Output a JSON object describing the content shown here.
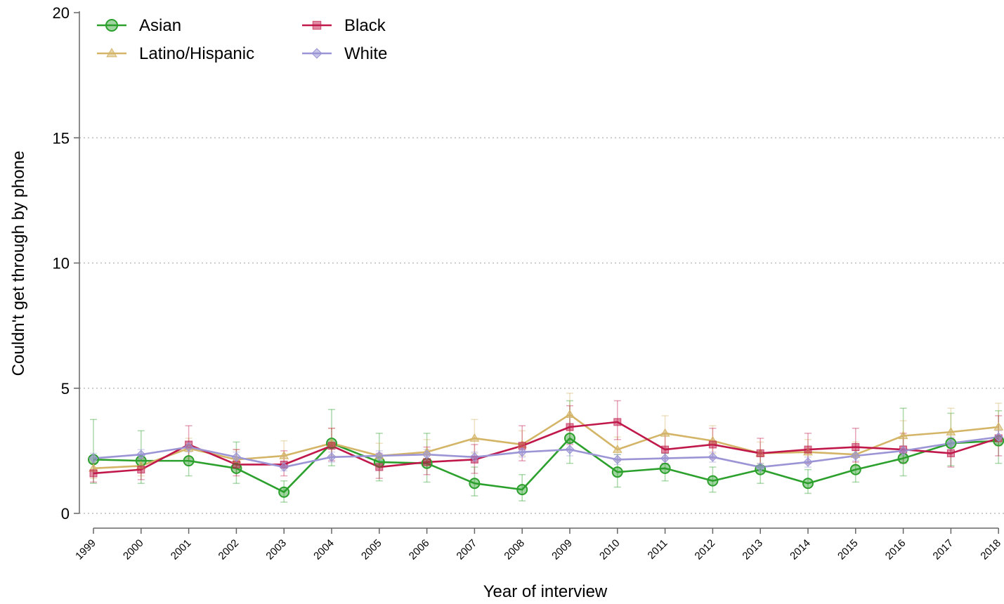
{
  "chart_data": {
    "type": "line",
    "title": "",
    "xlabel": "Year of interview",
    "ylabel": "Couldn't get through by phone",
    "ylim": [
      0,
      20
    ],
    "yticks": [
      0,
      5,
      10,
      15,
      20
    ],
    "grid": true,
    "legend_position": "top-left",
    "x": [
      "1999",
      "2000",
      "2001",
      "2002",
      "2003",
      "2004",
      "2005",
      "2006",
      "2007",
      "2008",
      "2009",
      "2010",
      "2011",
      "2012",
      "2013",
      "2014",
      "2015",
      "2016",
      "2017",
      "2018"
    ],
    "series": [
      {
        "name": "Asian",
        "color": "#2ca02c",
        "marker": "circle",
        "values": [
          2.15,
          2.1,
          2.1,
          1.8,
          0.85,
          2.8,
          2.05,
          2.0,
          1.2,
          0.95,
          3.0,
          1.65,
          1.8,
          1.3,
          1.75,
          1.2,
          1.75,
          2.2,
          2.8,
          2.9
        ],
        "err_low": [
          1.2,
          1.2,
          1.5,
          1.2,
          0.45,
          1.9,
          1.3,
          1.25,
          0.7,
          0.5,
          2.0,
          1.05,
          1.3,
          0.85,
          1.2,
          0.8,
          1.25,
          1.5,
          1.9,
          2.0
        ],
        "err_high": [
          3.75,
          3.3,
          2.75,
          2.85,
          1.3,
          4.15,
          3.2,
          3.2,
          1.85,
          1.55,
          4.5,
          2.35,
          2.4,
          1.85,
          2.45,
          1.75,
          2.4,
          4.2,
          4.0,
          4.1
        ]
      },
      {
        "name": "Latino/Hispanic",
        "color": "#d4b567",
        "marker": "triangle",
        "values": [
          1.8,
          1.9,
          2.6,
          2.15,
          2.3,
          2.8,
          2.3,
          2.45,
          3.0,
          2.75,
          3.95,
          2.55,
          3.2,
          2.9,
          2.4,
          2.45,
          2.35,
          3.1,
          3.25,
          3.45
        ],
        "err_low": [
          1.4,
          1.5,
          2.2,
          1.8,
          1.8,
          2.3,
          1.9,
          2.0,
          2.4,
          2.3,
          3.3,
          2.1,
          2.6,
          2.4,
          2.0,
          2.0,
          1.9,
          2.6,
          2.6,
          2.7
        ],
        "err_high": [
          2.2,
          2.3,
          3.0,
          2.55,
          2.9,
          3.4,
          2.8,
          2.95,
          3.75,
          3.3,
          4.8,
          3.05,
          3.9,
          3.5,
          2.85,
          2.95,
          2.85,
          3.7,
          4.2,
          4.4
        ]
      },
      {
        "name": "Black",
        "color": "#c0184a",
        "marker": "square",
        "values": [
          1.6,
          1.75,
          2.75,
          1.95,
          1.95,
          2.7,
          1.85,
          2.05,
          2.15,
          2.7,
          3.45,
          3.65,
          2.55,
          2.75,
          2.4,
          2.55,
          2.65,
          2.55,
          2.4,
          3.0
        ],
        "err_low": [
          1.25,
          1.35,
          2.1,
          1.5,
          1.5,
          2.1,
          1.4,
          1.55,
          1.6,
          2.1,
          2.75,
          2.95,
          2.0,
          2.2,
          1.9,
          2.0,
          2.05,
          2.0,
          1.85,
          2.3
        ],
        "err_high": [
          2.0,
          2.2,
          3.5,
          2.55,
          2.5,
          3.4,
          2.4,
          2.65,
          2.75,
          3.5,
          4.3,
          4.5,
          3.2,
          3.4,
          3.0,
          3.2,
          3.4,
          3.2,
          3.0,
          3.9
        ]
      },
      {
        "name": "White",
        "color": "#9b95d6",
        "marker": "diamond",
        "values": [
          2.2,
          2.35,
          2.65,
          2.25,
          1.85,
          2.25,
          2.3,
          2.35,
          2.25,
          2.45,
          2.55,
          2.15,
          2.2,
          2.25,
          1.85,
          2.05,
          2.3,
          2.5,
          2.8,
          3.05
        ],
        "err_low": [
          2.0,
          2.15,
          2.45,
          2.05,
          1.7,
          2.05,
          2.1,
          2.15,
          2.05,
          2.25,
          2.3,
          1.95,
          2.0,
          2.05,
          1.7,
          1.85,
          2.1,
          2.3,
          2.55,
          2.8
        ],
        "err_high": [
          2.4,
          2.55,
          2.85,
          2.45,
          2.05,
          2.45,
          2.5,
          2.55,
          2.45,
          2.65,
          2.8,
          2.35,
          2.4,
          2.45,
          2.0,
          2.25,
          2.5,
          2.7,
          3.05,
          3.3
        ]
      }
    ]
  }
}
